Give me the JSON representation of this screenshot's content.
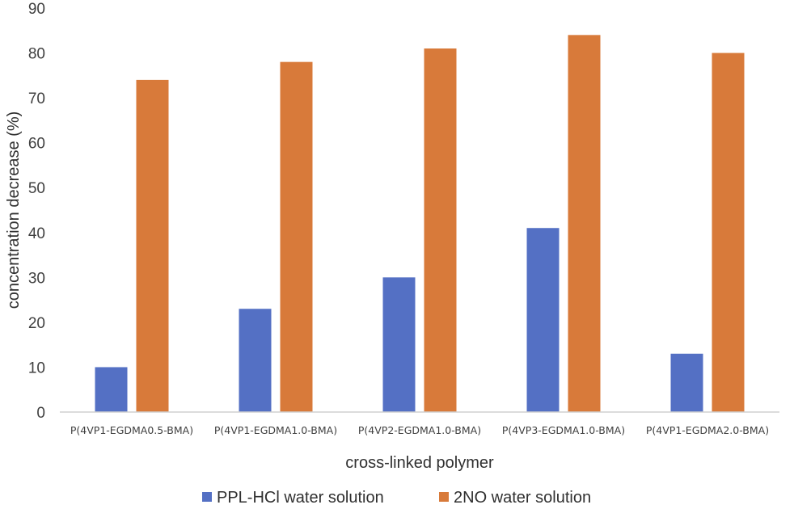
{
  "chart_data": {
    "type": "bar",
    "categories": [
      "P(4VP1-EGDMA0.5-BMA)",
      "P(4VP1-EGDMA1.0-BMA)",
      "P(4VP2-EGDMA1.0-BMA)",
      "P(4VP3-EGDMA1.0-BMA)",
      "P(4VP1-EGDMA2.0-BMA)"
    ],
    "series": [
      {
        "name": "PPL-HCl water solution",
        "color": "#5470c4",
        "values": [
          10,
          23,
          30,
          41,
          13
        ]
      },
      {
        "name": "2NO water solution",
        "color": "#d87a3a",
        "values": [
          74,
          78,
          81,
          84,
          80
        ]
      }
    ],
    "xlabel": "cross-linked polymer",
    "ylabel": "concentration decrease (%)",
    "ylim": [
      0,
      90
    ],
    "yticks": [
      0,
      10,
      20,
      30,
      40,
      50,
      60,
      70,
      80,
      90
    ],
    "grid": false,
    "legend_position": "bottom"
  }
}
